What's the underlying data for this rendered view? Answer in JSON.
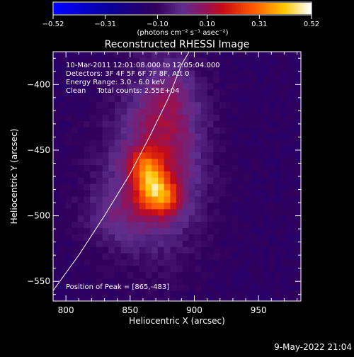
{
  "colorbar": {
    "ticks": [
      "−0.52",
      "−0.31",
      "−0.10",
      "0.10",
      "0.31",
      "0.52"
    ],
    "min": -0.52,
    "max": 0.52,
    "unit": "(photons cm⁻² s⁻¹ asec⁻²)",
    "colormap": "blue-black-purple-red-orange-yellow-white"
  },
  "footer": {
    "timestamp": "9-May-2022 21:04"
  },
  "chart_data": {
    "type": "heatmap",
    "title": "Reconstructed RHESSI Image",
    "xlabel": "Heliocentric X (arcsec)",
    "ylabel": "Heliocentric Y (arcsec)",
    "xlim": [
      790,
      983
    ],
    "ylim": [
      -565,
      -375
    ],
    "xticks": [
      "800",
      "850",
      "900",
      "950"
    ],
    "yticks": [
      "−400",
      "−450",
      "−500",
      "−550"
    ],
    "xtick_values": [
      800,
      850,
      900,
      950
    ],
    "ytick_values": [
      -400,
      -450,
      -500,
      -550
    ],
    "annotations": [
      "10-Mar-2011 12:01:08.000 to 12:05:04.000",
      "Detectors: 3F 4F 5F 6F 7F 8F, Att 0",
      "Energy Range: 3.0 - 6.0 keV",
      "Clean     Total counts: 2.55E+04"
    ],
    "peak_label": "Position of Peak = [865,-483]",
    "peak": [
      865,
      -483
    ],
    "limb_curve": [
      [
        790,
        -557
      ],
      [
        810,
        -530
      ],
      [
        830,
        -500
      ],
      [
        850,
        -468
      ],
      [
        865,
        -440
      ],
      [
        880,
        -410
      ],
      [
        890,
        -385
      ],
      [
        896,
        -375
      ]
    ],
    "sources": [
      {
        "x": 867,
        "y": -478,
        "sx": 9,
        "sy": 12,
        "amp": 0.34
      },
      {
        "x": 880,
        "y": -487,
        "sx": 8,
        "sy": 9,
        "amp": 0.18
      },
      {
        "x": 860,
        "y": -460,
        "sx": 9,
        "sy": 9,
        "amp": 0.14
      },
      {
        "x": 868,
        "y": -470,
        "sx": 28,
        "sy": 42,
        "amp": 0.2
      },
      {
        "x": 880,
        "y": -415,
        "sx": 18,
        "sy": 30,
        "amp": 0.14
      },
      {
        "x": 835,
        "y": -500,
        "sx": 18,
        "sy": 14,
        "amp": 0.08
      }
    ],
    "background": -0.13
  }
}
